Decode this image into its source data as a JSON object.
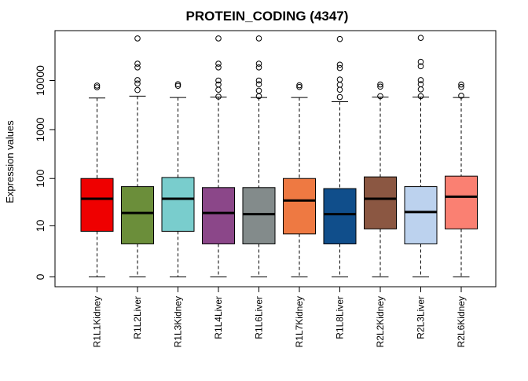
{
  "chart_data": {
    "type": "boxplot",
    "title": "PROTEIN_CODING (4347)",
    "xlabel": "",
    "ylabel": "Expression values",
    "y_scale": "log1p",
    "y_ticks": [
      0,
      10,
      100,
      1000,
      10000
    ],
    "y_tick_labels": [
      "0",
      "10",
      "100",
      "1000",
      "10000"
    ],
    "ylim": [
      0,
      80000
    ],
    "grid": false,
    "legend": "none",
    "categories": [
      "R1L1Kidney",
      "R1L2Liver",
      "R1L3Kidney",
      "R1L4Liver",
      "R1L6Liver",
      "R1L7Kidney",
      "R1L8Liver",
      "R2L2Kidney",
      "R2L3Liver",
      "R2L6Kidney"
    ],
    "boxes": [
      {
        "color": "#ef0000",
        "min": 0,
        "q1": 7.5,
        "median": 38,
        "q3": 100,
        "max": 4400,
        "outliers": [
          7300,
          7900
        ]
      },
      {
        "color": "#6b8e3a",
        "min": 0,
        "q1": 3.7,
        "median": 19,
        "q3": 68,
        "max": 4800,
        "outliers": [
          6400,
          8700,
          10200,
          18500,
          22000,
          72000
        ]
      },
      {
        "color": "#79cdcd",
        "min": 0,
        "q1": 7.5,
        "median": 38,
        "q3": 105,
        "max": 4500,
        "outliers": [
          7800,
          8400
        ]
      },
      {
        "color": "#8b4789",
        "min": 0,
        "q1": 3.7,
        "median": 19,
        "q3": 65,
        "max": 4600,
        "outliers": [
          4700,
          6500,
          8300,
          10000,
          18500,
          22000,
          72000
        ]
      },
      {
        "color": "#838b8b",
        "min": 0,
        "q1": 3.7,
        "median": 18,
        "q3": 65,
        "max": 4500,
        "outliers": [
          4800,
          6200,
          8400,
          10000,
          18500,
          22000,
          72000
        ]
      },
      {
        "color": "#ee7942",
        "min": 0,
        "q1": 6.5,
        "median": 35,
        "q3": 100,
        "max": 4500,
        "outliers": [
          7400,
          8000
        ]
      },
      {
        "color": "#104e8b",
        "min": 0,
        "q1": 3.7,
        "median": 18,
        "q3": 62,
        "max": 3700,
        "outliers": [
          4600,
          6500,
          8200,
          10500,
          18000,
          21000,
          70000
        ]
      },
      {
        "color": "#8b5742",
        "min": 0,
        "q1": 8.5,
        "median": 38,
        "q3": 108,
        "max": 4600,
        "outliers": [
          4800,
          7500,
          8300
        ]
      },
      {
        "color": "#bcd2ee",
        "min": 0,
        "q1": 3.7,
        "median": 20,
        "q3": 68,
        "max": 4600,
        "outliers": [
          4800,
          6600,
          8400,
          10200,
          19500,
          24000,
          74000
        ]
      },
      {
        "color": "#fa8072",
        "min": 0,
        "q1": 8.5,
        "median": 42,
        "q3": 112,
        "max": 4500,
        "outliers": [
          4900,
          7400,
          8300
        ]
      }
    ]
  }
}
